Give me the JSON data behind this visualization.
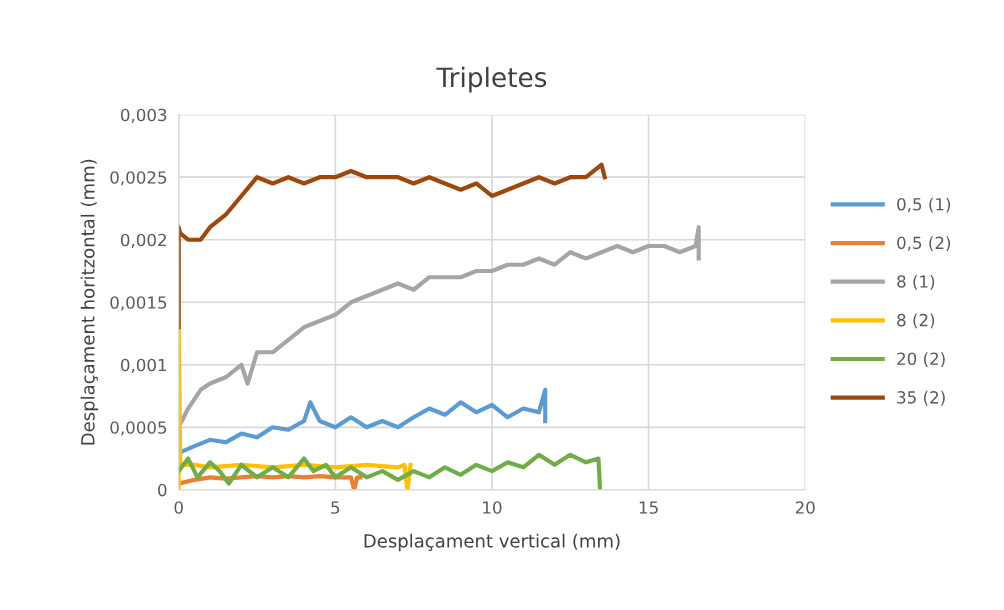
{
  "chart_data": {
    "type": "line",
    "title": "Tripletes",
    "xlabel": "Desplaçament vertical (mm)",
    "ylabel": "Desplaçament horitzontal (mm)",
    "xlim": [
      0,
      20
    ],
    "xticks": [
      0,
      5,
      10,
      15,
      20
    ],
    "ylim": [
      0,
      0.003
    ],
    "yticks": [
      {
        "value": 0,
        "label": "0"
      },
      {
        "value": 0.0005,
        "label": "0,0005"
      },
      {
        "value": 0.001,
        "label": "0,001"
      },
      {
        "value": 0.0015,
        "label": "0,0015"
      },
      {
        "value": 0.002,
        "label": "0,002"
      },
      {
        "value": 0.0025,
        "label": "0,0025"
      },
      {
        "value": 0.003,
        "label": "0,003"
      }
    ],
    "grid": true,
    "legend": "right",
    "marker": "none",
    "line_style": "solid",
    "series": [
      {
        "name": "0,5 (1)",
        "color": "#5b9bd5",
        "x": [
          0.05,
          0.5,
          1,
          1.5,
          2,
          2.5,
          3,
          3.5,
          4,
          4.2,
          4.5,
          5,
          5.5,
          6,
          6.5,
          7,
          7.5,
          8,
          8.5,
          9,
          9.5,
          10,
          10.5,
          11,
          11.5,
          11.7,
          11.7
        ],
        "values": [
          0.0003,
          0.00035,
          0.0004,
          0.00038,
          0.00045,
          0.00042,
          0.0005,
          0.00048,
          0.00055,
          0.0007,
          0.00055,
          0.0005,
          0.00058,
          0.0005,
          0.00055,
          0.0005,
          0.00058,
          0.00065,
          0.0006,
          0.0007,
          0.00062,
          0.00068,
          0.00058,
          0.00065,
          0.00062,
          0.0008,
          0.00055
        ]
      },
      {
        "name": "0,5 (2)",
        "color": "#ed7d31",
        "x": [
          0,
          0.5,
          1,
          1.5,
          2,
          2.5,
          3,
          3.5,
          4,
          4.5,
          5,
          5.5,
          5.6,
          5.7,
          5.8
        ],
        "values": [
          5e-05,
          8e-05,
          0.0001,
          9e-05,
          0.0001,
          0.00011,
          0.0001,
          0.00011,
          0.0001,
          0.00011,
          0.0001,
          0.0001,
          0,
          0.0001,
          0.0001
        ]
      },
      {
        "name": "8 (1)",
        "color": "#a5a5a5",
        "x": [
          0,
          0.3,
          0.7,
          1,
          1.5,
          2,
          2.2,
          2.5,
          3,
          3.5,
          4,
          4.5,
          5,
          5.5,
          6,
          6.5,
          7,
          7.5,
          8,
          8.5,
          9,
          9.5,
          10,
          10.5,
          11,
          11.5,
          12,
          12.5,
          13,
          13.5,
          14,
          14.5,
          15,
          15.5,
          16,
          16.5,
          16.6,
          16.6
        ],
        "values": [
          0.0005,
          0.00065,
          0.0008,
          0.00085,
          0.0009,
          0.001,
          0.00085,
          0.0011,
          0.0011,
          0.0012,
          0.0013,
          0.00135,
          0.0014,
          0.0015,
          0.00155,
          0.0016,
          0.00165,
          0.0016,
          0.0017,
          0.0017,
          0.0017,
          0.00175,
          0.00175,
          0.0018,
          0.0018,
          0.00185,
          0.0018,
          0.0019,
          0.00185,
          0.0019,
          0.00195,
          0.0019,
          0.00195,
          0.00195,
          0.0019,
          0.00195,
          0.0021,
          0.00185
        ]
      },
      {
        "name": "8 (2)",
        "color": "#ffc000",
        "x": [
          0,
          0,
          0.05,
          0.5,
          1,
          2,
          3,
          4,
          5,
          6,
          7,
          7.2,
          7.3,
          7.4
        ],
        "values": [
          0,
          0.0013,
          0.0002,
          0.0002,
          0.00018,
          0.0002,
          0.00018,
          0.0002,
          0.00018,
          0.0002,
          0.00018,
          0.0002,
          0,
          0.0002
        ]
      },
      {
        "name": "20 (2)",
        "color": "#70ad47",
        "x": [
          0,
          0.3,
          0.6,
          1,
          1.3,
          1.6,
          2,
          2.5,
          3,
          3.5,
          4,
          4.3,
          4.7,
          5,
          5.5,
          6,
          6.5,
          7,
          7.5,
          8,
          8.5,
          9,
          9.5,
          10,
          10.5,
          11,
          11.5,
          12,
          12.5,
          13,
          13.4,
          13.45
        ],
        "values": [
          0.00015,
          0.00025,
          0.0001,
          0.00022,
          0.00015,
          5e-05,
          0.0002,
          0.0001,
          0.00018,
          0.0001,
          0.00025,
          0.00015,
          0.0002,
          0.0001,
          0.00018,
          0.0001,
          0.00015,
          8e-05,
          0.00015,
          0.0001,
          0.00018,
          0.00012,
          0.0002,
          0.00015,
          0.00022,
          0.00018,
          0.00028,
          0.0002,
          0.00028,
          0.00022,
          0.00025,
          0
        ]
      },
      {
        "name": "35 (2)",
        "color": "#9e480e",
        "x": [
          0,
          0,
          0.05,
          0.3,
          0.7,
          1,
          1.5,
          2,
          2.5,
          3,
          3.5,
          4,
          4.5,
          5,
          5.5,
          6,
          6.5,
          7,
          7.5,
          8,
          8.5,
          9,
          9.5,
          10,
          10.5,
          11,
          11.5,
          12,
          12.5,
          13,
          13.5,
          13.6
        ],
        "values": [
          0.0013,
          0.0021,
          0.00205,
          0.002,
          0.002,
          0.0021,
          0.0022,
          0.00235,
          0.0025,
          0.00245,
          0.0025,
          0.00245,
          0.0025,
          0.0025,
          0.00255,
          0.0025,
          0.0025,
          0.0025,
          0.00245,
          0.0025,
          0.00245,
          0.0024,
          0.00245,
          0.00235,
          0.0024,
          0.00245,
          0.0025,
          0.00245,
          0.0025,
          0.0025,
          0.0026,
          0.0025
        ]
      }
    ]
  }
}
